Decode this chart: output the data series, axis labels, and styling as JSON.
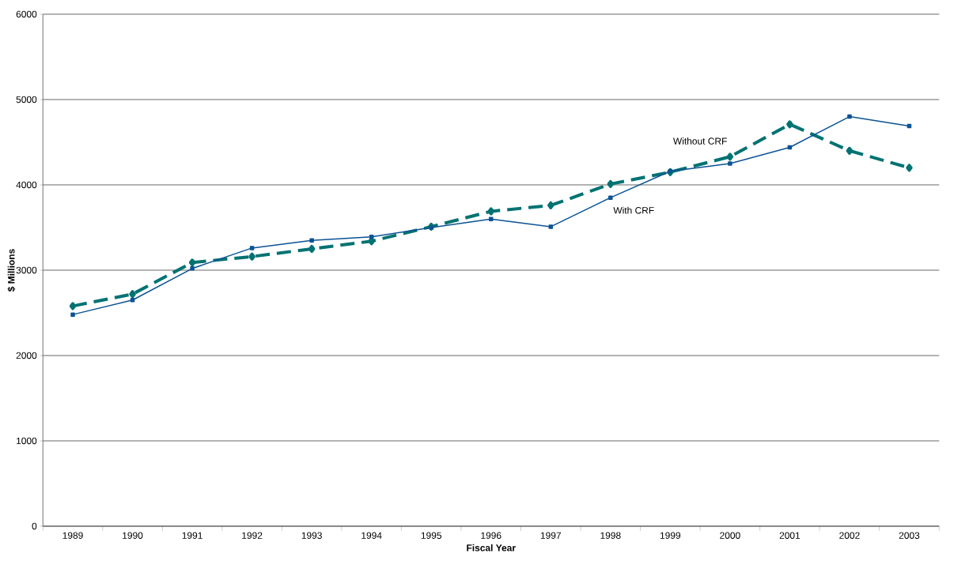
{
  "chart_data": {
    "type": "line",
    "xlabel": "Fiscal Year",
    "ylabel": "$ Millions",
    "categories": [
      "1989",
      "1990",
      "1991",
      "1992",
      "1993",
      "1994",
      "1995",
      "1996",
      "1997",
      "1998",
      "1999",
      "2000",
      "2001",
      "2002",
      "2003"
    ],
    "series": [
      {
        "name": "With CRF",
        "color": "#0b5394",
        "marker": "square",
        "line_style": "solid",
        "values": [
          2480,
          2650,
          3020,
          3260,
          3350,
          3390,
          3500,
          3600,
          3510,
          3850,
          4160,
          4250,
          4440,
          4800,
          4690
        ]
      },
      {
        "name": "Without CRF",
        "color": "#007272",
        "marker": "diamond",
        "line_style": "dashed",
        "values": [
          2580,
          2720,
          3090,
          3160,
          3250,
          3340,
          3510,
          3690,
          3760,
          4010,
          4150,
          4330,
          4710,
          4400,
          4200
        ]
      }
    ],
    "ylim": [
      0,
      6000
    ],
    "yticks": [
      0,
      1000,
      2000,
      3000,
      4000,
      5000,
      6000
    ],
    "grid": "y",
    "legend": false
  }
}
